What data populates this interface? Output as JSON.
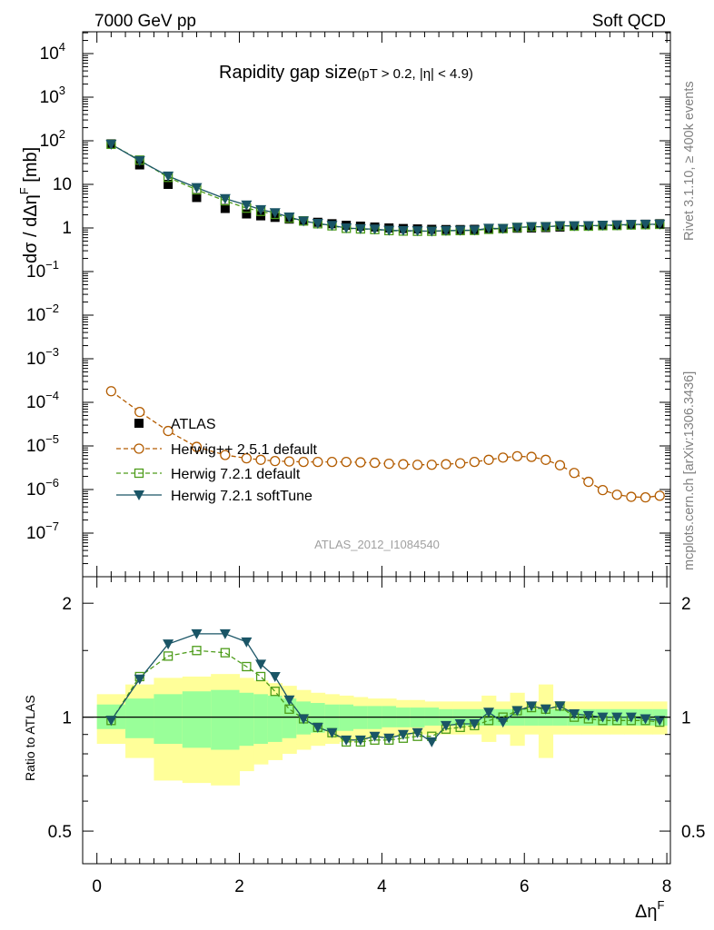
{
  "header": {
    "left": "7000 GeV pp",
    "right": "Soft QCD"
  },
  "side": {
    "rivet": "Rivet 3.1.10, ≥ 400k events",
    "mcplots": "mcplots.cern.ch [arXiv:1306.3436]"
  },
  "colors": {
    "atlas": "#000000",
    "herwigpp": "#b35c00",
    "herwig721": "#4d9c1a",
    "softtune": "#1a5566",
    "band_inner": "#99ff99",
    "band_outer": "#ffff99",
    "analysis_label": "#a0a0a0",
    "side_text": "#808080"
  },
  "chart_data": [
    {
      "type": "line",
      "panel": "main",
      "title": "Rapidity gap size",
      "title_suffix": "(pT > 0.2, |η| < 4.9)",
      "ylabel": "dσ / dΔη^F [mb]",
      "xlabel": "Δη^F",
      "yscale": "log",
      "xlim": [
        -0.2,
        8.05
      ],
      "ylim_exp": [
        -8,
        4.5
      ],
      "x_ticks": [
        "0",
        "2",
        "4",
        "6",
        "8"
      ],
      "y_ticks": [
        {
          "exp": -7,
          "label": "10",
          "sup": "−7"
        },
        {
          "exp": -6,
          "label": "10",
          "sup": "−6"
        },
        {
          "exp": -5,
          "label": "10",
          "sup": "−5"
        },
        {
          "exp": -4,
          "label": "10",
          "sup": "−4"
        },
        {
          "exp": -3,
          "label": "10",
          "sup": "−3"
        },
        {
          "exp": -2,
          "label": "10",
          "sup": "−2"
        },
        {
          "exp": -1,
          "label": "10",
          "sup": "−1"
        },
        {
          "exp": 0,
          "label": "1",
          "sup": ""
        },
        {
          "exp": 1,
          "label": "10",
          "sup": ""
        },
        {
          "exp": 2,
          "label": "10",
          "sup": "2"
        },
        {
          "exp": 3,
          "label": "10",
          "sup": "3"
        },
        {
          "exp": 4,
          "label": "10",
          "sup": "4"
        }
      ],
      "x": [
        0.2,
        0.6,
        1.0,
        1.4,
        1.8,
        2.1,
        2.3,
        2.5,
        2.7,
        2.9,
        3.1,
        3.3,
        3.5,
        3.7,
        3.9,
        4.1,
        4.3,
        4.5,
        4.7,
        4.9,
        5.1,
        5.3,
        5.5,
        5.7,
        5.9,
        6.1,
        6.3,
        6.5,
        6.7,
        6.9,
        7.1,
        7.3,
        7.5,
        7.7,
        7.9
      ],
      "series": [
        {
          "name": "ATLAS",
          "style": "data",
          "values": [
            85,
            28,
            10,
            5.0,
            2.8,
            2.1,
            1.9,
            1.75,
            1.6,
            1.45,
            1.35,
            1.25,
            1.15,
            1.1,
            1.05,
            1.0,
            0.97,
            0.95,
            0.93,
            0.92,
            0.92,
            0.93,
            0.95,
            0.97,
            0.99,
            1.0,
            1.02,
            1.05,
            1.1,
            1.12,
            1.15,
            1.17,
            1.2,
            1.22,
            1.25
          ]
        },
        {
          "name": "Herwig++ 2.5.1 default",
          "style": "circle-dashed",
          "values": [
            0.00018,
            6e-05,
            2.2e-05,
            9.5e-06,
            6.2e-06,
            5.2e-06,
            4.8e-06,
            4.5e-06,
            4.4e-06,
            4.3e-06,
            4.3e-06,
            4.3e-06,
            4.3e-06,
            4.2e-06,
            4.1e-06,
            3.9e-06,
            3.8e-06,
            3.7e-06,
            3.7e-06,
            3.8e-06,
            4e-06,
            4.3e-06,
            4.8e-06,
            5.4e-06,
            5.8e-06,
            5.6e-06,
            4.8e-06,
            3.6e-06,
            2.4e-06,
            1.5e-06,
            9.7e-07,
            7.6e-07,
            6.8e-07,
            6.6e-07,
            7.2e-07
          ]
        },
        {
          "name": "Herwig 7.2.1 default",
          "style": "square-dashed",
          "values": [
            83,
            36,
            14.5,
            7.5,
            4.2,
            2.85,
            2.4,
            2.05,
            1.68,
            1.45,
            1.25,
            1.12,
            0.98,
            0.95,
            0.92,
            0.87,
            0.85,
            0.84,
            0.84,
            0.86,
            0.87,
            0.88,
            0.93,
            0.97,
            1.03,
            1.06,
            1.07,
            1.12,
            1.1,
            1.1,
            1.13,
            1.14,
            1.17,
            1.19,
            1.21
          ]
        },
        {
          "name": "Herwig 7.2.1 softTune",
          "style": "triangle-solid",
          "values": [
            83,
            35,
            15.5,
            8.4,
            4.7,
            3.35,
            2.63,
            2.24,
            1.78,
            1.44,
            1.27,
            1.14,
            1.0,
            0.96,
            0.94,
            0.88,
            0.87,
            0.86,
            0.84,
            0.87,
            0.88,
            0.89,
            0.98,
            0.97,
            1.03,
            1.07,
            1.07,
            1.12,
            1.12,
            1.13,
            1.15,
            1.17,
            1.2,
            1.21,
            1.22
          ]
        }
      ],
      "legend": [
        "ATLAS",
        "Herwig++ 2.5.1 default",
        "Herwig 7.2.1 default",
        "Herwig 7.2.1 softTune"
      ],
      "legend_position": "middle-left",
      "annotation": "ATLAS_2012_I1084540"
    },
    {
      "type": "line",
      "panel": "ratio",
      "ylabel": "Ratio to ATLAS",
      "yscale": "log",
      "ylim": [
        0.41,
        2.35
      ],
      "y_ticks": [
        "0.5",
        "1",
        "2"
      ],
      "x_edges": [
        0.0,
        0.4,
        0.8,
        1.2,
        1.6,
        2.0,
        2.2,
        2.4,
        2.6,
        2.8,
        3.0,
        3.2,
        3.4,
        3.6,
        3.8,
        4.0,
        4.2,
        4.4,
        4.6,
        4.8,
        5.0,
        5.2,
        5.4,
        5.6,
        5.8,
        6.0,
        6.2,
        6.4,
        6.6,
        6.8,
        7.0,
        7.2,
        7.4,
        7.6,
        7.8,
        8.0
      ],
      "band_inner": [
        [
          0.93,
          1.08
        ],
        [
          0.88,
          1.12
        ],
        [
          0.85,
          1.15
        ],
        [
          0.83,
          1.17
        ],
        [
          0.82,
          1.18
        ],
        [
          0.84,
          1.16
        ],
        [
          0.85,
          1.15
        ],
        [
          0.86,
          1.14
        ],
        [
          0.88,
          1.12
        ],
        [
          0.9,
          1.1
        ],
        [
          0.91,
          1.09
        ],
        [
          0.92,
          1.08
        ],
        [
          0.92,
          1.08
        ],
        [
          0.93,
          1.07
        ],
        [
          0.93,
          1.07
        ],
        [
          0.94,
          1.07
        ],
        [
          0.94,
          1.06
        ],
        [
          0.94,
          1.06
        ],
        [
          0.95,
          1.06
        ],
        [
          0.95,
          1.05
        ],
        [
          0.95,
          1.05
        ],
        [
          0.95,
          1.05
        ],
        [
          0.95,
          1.05
        ],
        [
          0.95,
          1.05
        ],
        [
          0.95,
          1.05
        ],
        [
          0.95,
          1.05
        ],
        [
          0.95,
          1.05
        ],
        [
          0.95,
          1.05
        ],
        [
          0.95,
          1.05
        ],
        [
          0.95,
          1.05
        ],
        [
          0.95,
          1.05
        ],
        [
          0.95,
          1.05
        ],
        [
          0.95,
          1.05
        ],
        [
          0.95,
          1.05
        ],
        [
          0.95,
          1.05
        ]
      ],
      "band_outer": [
        [
          0.85,
          1.15
        ],
        [
          0.78,
          1.22
        ],
        [
          0.68,
          1.27
        ],
        [
          0.67,
          1.28
        ],
        [
          0.66,
          1.3
        ],
        [
          0.72,
          1.27
        ],
        [
          0.75,
          1.25
        ],
        [
          0.77,
          1.23
        ],
        [
          0.8,
          1.21
        ],
        [
          0.82,
          1.18
        ],
        [
          0.84,
          1.16
        ],
        [
          0.85,
          1.15
        ],
        [
          0.86,
          1.14
        ],
        [
          0.87,
          1.13
        ],
        [
          0.88,
          1.12
        ],
        [
          0.89,
          1.12
        ],
        [
          0.89,
          1.11
        ],
        [
          0.9,
          1.11
        ],
        [
          0.9,
          1.1
        ],
        [
          0.9,
          1.1
        ],
        [
          0.9,
          1.1
        ],
        [
          0.9,
          1.1
        ],
        [
          0.86,
          1.14
        ],
        [
          0.9,
          1.1
        ],
        [
          0.84,
          1.16
        ],
        [
          0.9,
          1.1
        ],
        [
          0.78,
          1.22
        ],
        [
          0.9,
          1.1
        ],
        [
          0.9,
          1.1
        ],
        [
          0.9,
          1.1
        ],
        [
          0.9,
          1.1
        ],
        [
          0.9,
          1.1
        ],
        [
          0.9,
          1.1
        ],
        [
          0.9,
          1.1
        ],
        [
          0.9,
          1.1
        ]
      ],
      "x": [
        0.2,
        0.6,
        1.0,
        1.4,
        1.8,
        2.1,
        2.3,
        2.5,
        2.7,
        2.9,
        3.1,
        3.3,
        3.5,
        3.7,
        3.9,
        4.1,
        4.3,
        4.5,
        4.7,
        4.9,
        5.1,
        5.3,
        5.5,
        5.7,
        5.9,
        6.1,
        6.3,
        6.5,
        6.7,
        6.9,
        7.1,
        7.3,
        7.5,
        7.7,
        7.9
      ],
      "series": [
        {
          "name": "Herwig 7.2.1 default",
          "style": "square-dashed",
          "values": [
            0.98,
            1.28,
            1.45,
            1.5,
            1.48,
            1.36,
            1.28,
            1.17,
            1.05,
            0.99,
            0.94,
            0.91,
            0.86,
            0.86,
            0.87,
            0.87,
            0.88,
            0.89,
            0.89,
            0.93,
            0.94,
            0.95,
            0.98,
            1.0,
            1.04,
            1.06,
            1.05,
            1.07,
            1.0,
            0.99,
            0.98,
            0.98,
            0.98,
            0.98,
            0.97
          ]
        },
        {
          "name": "Herwig 7.2.1 softTune",
          "style": "triangle-solid",
          "values": [
            0.98,
            1.26,
            1.56,
            1.66,
            1.66,
            1.58,
            1.38,
            1.28,
            1.11,
            0.99,
            0.94,
            0.91,
            0.87,
            0.87,
            0.89,
            0.88,
            0.9,
            0.91,
            0.86,
            0.95,
            0.96,
            0.96,
            1.03,
            0.97,
            1.04,
            1.07,
            1.05,
            1.07,
            1.02,
            1.01,
            1.0,
            1.0,
            1.0,
            0.99,
            0.98
          ]
        }
      ]
    }
  ]
}
